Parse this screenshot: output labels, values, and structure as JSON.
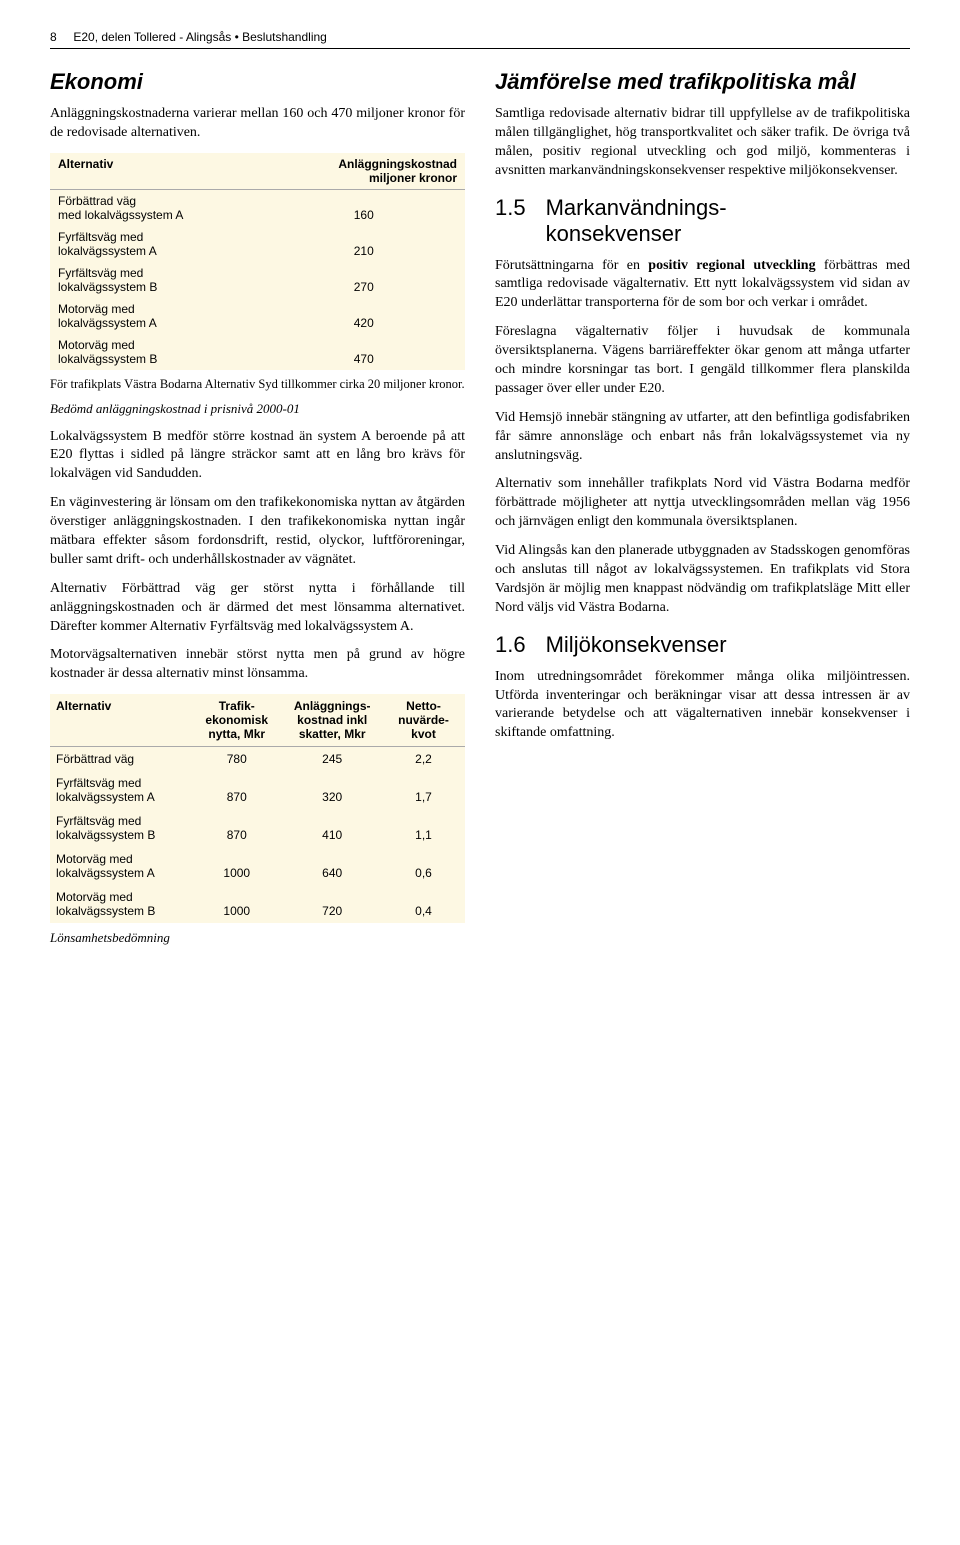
{
  "header": {
    "page_num": "8",
    "doc_title": "E20, delen Tollered - Alingsås • Beslutshandling"
  },
  "left": {
    "h1": "Ekonomi",
    "p1": "Anläggningskostnaderna varierar mellan 160 och 470 miljoner kronor för de redovisade alternativen.",
    "table1": {
      "bg": "#fdf8e3",
      "head_left": "Alternativ",
      "head_right1": "Anläggningskostnad",
      "head_right2": "miljoner kronor",
      "rows": [
        {
          "l1": "Förbättrad väg",
          "l2": "med lokalvägssystem A",
          "v": "160"
        },
        {
          "l1": "Fyrfältsväg med",
          "l2": "lokalvägssystem A",
          "v": "210"
        },
        {
          "l1": "Fyrfältsväg med",
          "l2": "lokalvägssystem B",
          "v": "270"
        },
        {
          "l1": "Motorväg med",
          "l2": "lokalvägssystem A",
          "v": "420"
        },
        {
          "l1": "Motorväg med",
          "l2": "lokalvägssystem B",
          "v": "470"
        }
      ]
    },
    "foot1": "För trafikplats Västra Bodarna Alternativ Syd tillkommer cirka 20 miljoner kronor.",
    "caption1": "Bedömd anläggningskostnad i prisnivå 2000-01",
    "p2": "Lokalvägssystem B medför större kostnad än system A beroende på att E20 flyttas i sidled på längre sträckor samt att en lång bro krävs för lokalvägen vid Sandudden.",
    "p3": "En väginvestering är lönsam om den trafikekonomiska nyttan av åtgärden överstiger anläggningskostnaden. I den trafikekonomiska nyttan ingår mätbara effekter såsom fordonsdrift, restid, olyckor, luftföroreningar, buller samt drift- och underhållskostnader av vägnätet.",
    "p4": "Alternativ Förbättrad väg ger störst nytta i förhållande till anläggningskostnaden och är därmed det mest lönsamma alternativet. Därefter kommer Alternativ Fyrfältsväg med lokalvägssystem A.",
    "p5": "Motorvägsalternativen innebär störst nytta men på grund av högre kostnader är dessa alternativ minst lönsamma.",
    "table2": {
      "bg": "#fdf8e3",
      "head": [
        "Alternativ",
        "Trafik-\nekonomisk\nnytta, Mkr",
        "Anläggnings-\nkostnad inkl\nskatter, Mkr",
        "Netto-\nnuvärde-\nkvot"
      ],
      "rows": [
        {
          "a": "Förbättrad väg",
          "c1": "780",
          "c2": "245",
          "c3": "2,2"
        },
        {
          "a": "Fyrfältsväg med\nlokalvägssystem A",
          "c1": "870",
          "c2": "320",
          "c3": "1,7"
        },
        {
          "a": "Fyrfältsväg med\nlokalvägssystem B",
          "c1": "870",
          "c2": "410",
          "c3": "1,1"
        },
        {
          "a": "Motorväg med\nlokalvägssystem A",
          "c1": "1000",
          "c2": "640",
          "c3": "0,6"
        },
        {
          "a": "Motorväg med\nlokalvägssystem B",
          "c1": "1000",
          "c2": "720",
          "c3": "0,4"
        }
      ]
    },
    "caption2": "Lönsamhetsbedömning"
  },
  "right": {
    "h1": "Jämförelse med trafikpolitiska mål",
    "p1": "Samtliga redovisade alternativ bidrar till uppfyllelse av de trafikpolitiska målen tillgänglighet, hög transportkvalitet och säker trafik. De övriga två målen, positiv regional utveckling och god miljö, kommenteras i avsnitten markanvändningskonsekvenser respektive miljökonsekvenser.",
    "h2_num": "1.5",
    "h2_txt": "Markanvändnings-\nkonsekvenser",
    "p2a": "Förutsättningarna för en ",
    "p2b": "positiv regional utveckling",
    "p2c": " förbättras med samtliga redovisade vägalternativ. Ett nytt lokalvägssystem vid sidan av E20 underlättar transporterna för de som bor och verkar i området.",
    "p3": "Föreslagna vägalternativ följer i huvudsak de kommunala översiktsplanerna. Vägens barriäreffekter ökar genom att många utfarter och mindre korsningar tas bort. I gengäld tillkommer flera planskilda passager över eller under E20.",
    "p4": "Vid Hemsjö innebär stängning av utfarter, att den befintliga godisfabriken får sämre annonsläge och enbart nås från lokalvägssystemet via ny anslutningsväg.",
    "p5": "Alternativ som innehåller trafikplats Nord vid Västra Bodarna medför förbättrade möjligheter att nyttja utvecklingsområden mellan väg 1956 och järnvägen enligt den kommunala översiktsplanen.",
    "p6": "Vid Alingsås kan den planerade utbyggnaden av Stadsskogen genomföras och anslutas till något av lokalvägssystemen. En trafikplats vid Stora Vardsjön är möjlig men knappast nödvändig om trafikplatsläge Mitt eller Nord väljs vid Västra Bodarna.",
    "h3_num": "1.6",
    "h3_txt": "Miljökonsekvenser",
    "p7": "Inom utredningsområdet förekommer många olika miljöintressen. Utförda inventeringar och beräkningar visar att dessa intressen är av varierande betydelse och att vägalternativen innebär konsekvenser i skiftande omfattning."
  }
}
